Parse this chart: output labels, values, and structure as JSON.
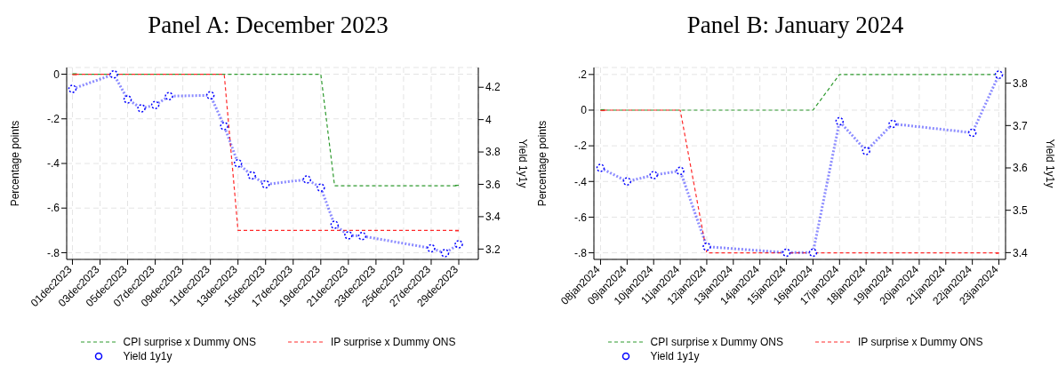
{
  "chart_data": [
    {
      "type": "line",
      "title": "Panel A: December 2023",
      "ylabel": "Percentage points",
      "y2label": "Yield 1y1y",
      "grid": true,
      "legend": "bottom",
      "xlim": [
        "2023-11-30T14:00",
        "2023-12-30T10:00"
      ],
      "xticks": [
        {
          "value": "2023-12-01",
          "label": "01dec2023"
        },
        {
          "value": "2023-12-03",
          "label": "03dec2023"
        },
        {
          "value": "2023-12-05",
          "label": "05dec2023"
        },
        {
          "value": "2023-12-07",
          "label": "07dec2023"
        },
        {
          "value": "2023-12-09",
          "label": "09dec2023"
        },
        {
          "value": "2023-12-11",
          "label": "11dec2023"
        },
        {
          "value": "2023-12-13",
          "label": "13dec2023"
        },
        {
          "value": "2023-12-15",
          "label": "15dec2023"
        },
        {
          "value": "2023-12-17",
          "label": "17dec2023"
        },
        {
          "value": "2023-12-19",
          "label": "19dec2023"
        },
        {
          "value": "2023-12-21",
          "label": "21dec2023"
        },
        {
          "value": "2023-12-23",
          "label": "23dec2023"
        },
        {
          "value": "2023-12-25",
          "label": "25dec2023"
        },
        {
          "value": "2023-12-27",
          "label": "27dec2023"
        },
        {
          "value": "2023-12-29",
          "label": "29dec2023"
        }
      ],
      "ylim": [
        -0.83,
        0.03
      ],
      "yticks": [
        0,
        {
          "value": -0.2,
          "label": "-.2"
        },
        {
          "value": -0.4,
          "label": "-.4"
        },
        {
          "value": -0.6,
          "label": "-.6"
        },
        {
          "value": -0.8,
          "label": "-.8"
        }
      ],
      "y2lim": [
        3.136,
        4.322
      ],
      "y2ticks": [
        3.2,
        3.4,
        3.6,
        3.8,
        4,
        4.2
      ],
      "x": [
        "2023-12-01",
        "2023-12-04",
        "2023-12-05",
        "2023-12-06",
        "2023-12-07",
        "2023-12-08",
        "2023-12-11",
        "2023-12-12",
        "2023-12-13",
        "2023-12-14",
        "2023-12-15",
        "2023-12-18",
        "2023-12-19",
        "2023-12-20",
        "2023-12-21",
        "2023-12-22",
        "2023-12-27",
        "2023-12-28",
        "2023-12-29"
      ],
      "series": [
        {
          "name": "CPI surprise x Dummy ONS",
          "color": "#2e9a2e",
          "line_style": "dashed",
          "marker": "none",
          "values": [
            0,
            0,
            0,
            0,
            0,
            0,
            0,
            0,
            0,
            0,
            0,
            0,
            0,
            -0.5,
            -0.5,
            -0.5,
            -0.5,
            -0.5,
            -0.5
          ]
        },
        {
          "name": "IP surprise x Dummy ONS",
          "color": "#ff2a2a",
          "line_style": "dashed",
          "marker": "none",
          "values": [
            0,
            0,
            0,
            0,
            0,
            0,
            0,
            0,
            -0.7,
            -0.7,
            -0.7,
            -0.7,
            -0.7,
            -0.7,
            -0.7,
            -0.7,
            -0.7,
            -0.7,
            -0.7
          ]
        },
        {
          "name": "Yield 1y1y",
          "color": "#0000ff",
          "line_style": "dotted",
          "marker": "circle",
          "axis": "y2",
          "values": [
            4.19,
            4.28,
            4.125,
            4.07,
            4.09,
            4.145,
            4.15,
            3.96,
            3.73,
            3.655,
            3.6,
            3.63,
            3.58,
            3.35,
            3.285,
            3.28,
            3.205,
            3.175,
            3.23
          ]
        }
      ]
    },
    {
      "type": "line",
      "title": "Panel B: January 2024",
      "ylabel": "Percentage points",
      "y2label": "Yield 1y1y",
      "grid": true,
      "legend": "bottom",
      "xlim": [
        "2024-01-07T18:00",
        "2024-01-23T06:00"
      ],
      "xticks": [
        {
          "value": "2024-01-08",
          "label": "08jan2024"
        },
        {
          "value": "2024-01-09",
          "label": "09jan2024"
        },
        {
          "value": "2024-01-10",
          "label": "10jan2024"
        },
        {
          "value": "2024-01-11",
          "label": "11jan2024"
        },
        {
          "value": "2024-01-12",
          "label": "12jan2024"
        },
        {
          "value": "2024-01-13",
          "label": "13jan2024"
        },
        {
          "value": "2024-01-14",
          "label": "14jan2024"
        },
        {
          "value": "2024-01-15",
          "label": "15jan2024"
        },
        {
          "value": "2024-01-16",
          "label": "16jan2024"
        },
        {
          "value": "2024-01-17",
          "label": "17jan2024"
        },
        {
          "value": "2024-01-18",
          "label": "18jan2024"
        },
        {
          "value": "2024-01-19",
          "label": "19jan2024"
        },
        {
          "value": "2024-01-20",
          "label": "20jan2024"
        },
        {
          "value": "2024-01-21",
          "label": "21jan2024"
        },
        {
          "value": "2024-01-22",
          "label": "22jan2024"
        },
        {
          "value": "2024-01-23",
          "label": "23jan2024"
        }
      ],
      "ylim": [
        -0.837,
        0.239
      ],
      "yticks": [
        {
          "value": 0.2,
          "label": ".2"
        },
        0,
        {
          "value": -0.2,
          "label": "-.2"
        },
        {
          "value": -0.4,
          "label": "-.4"
        },
        {
          "value": -0.6,
          "label": "-.6"
        },
        {
          "value": -0.8,
          "label": "-.8"
        }
      ],
      "y2lim": [
        3.384,
        3.837
      ],
      "y2ticks": [
        3.4,
        3.5,
        3.6,
        3.7,
        3.8
      ],
      "x": [
        "2024-01-08",
        "2024-01-09",
        "2024-01-10",
        "2024-01-11",
        "2024-01-12",
        "2024-01-15",
        "2024-01-16",
        "2024-01-17",
        "2024-01-18",
        "2024-01-19",
        "2024-01-22",
        "2024-01-23"
      ],
      "series": [
        {
          "name": "CPI surprise x Dummy ONS",
          "color": "#2e9a2e",
          "line_style": "dashed",
          "marker": "none",
          "values": [
            0,
            0,
            0,
            0,
            0,
            0,
            0,
            0.2,
            0.2,
            0.2,
            0.2,
            0.2
          ]
        },
        {
          "name": "IP surprise x Dummy ONS",
          "color": "#ff2a2a",
          "line_style": "dashed",
          "marker": "none",
          "values": [
            0,
            0,
            0,
            0,
            -0.8,
            -0.8,
            -0.8,
            -0.8,
            -0.8,
            -0.8,
            -0.8,
            -0.8
          ]
        },
        {
          "name": "Yield 1y1y",
          "color": "#0000ff",
          "line_style": "dotted",
          "marker": "circle",
          "axis": "y2",
          "values": [
            3.6,
            3.568,
            3.583,
            3.593,
            3.414,
            3.4,
            3.4,
            3.71,
            3.64,
            3.704,
            3.683,
            3.82
          ]
        }
      ]
    }
  ]
}
